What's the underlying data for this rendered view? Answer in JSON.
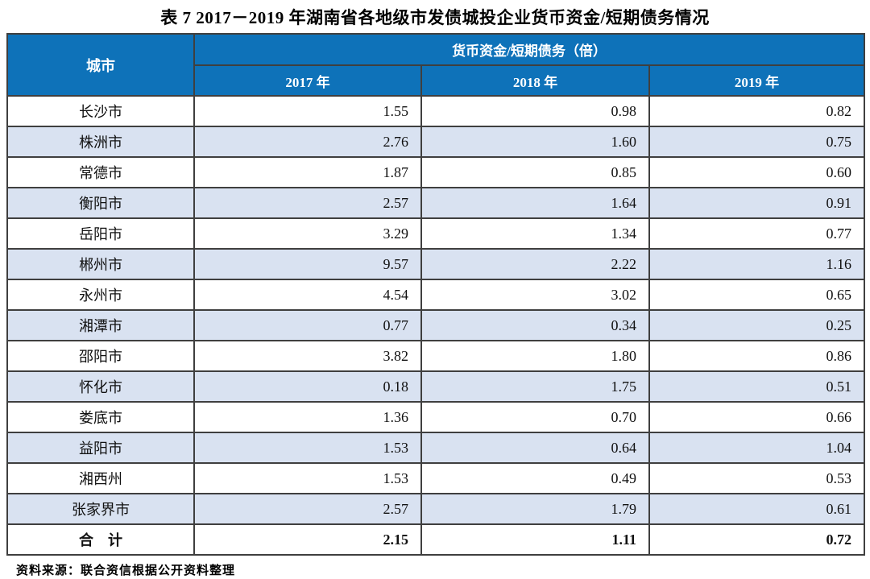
{
  "title": "表 7  2017－2019 年湖南省各地级市发债城投企业货币资金/短期债务情况",
  "table": {
    "col_city": "城市",
    "col_group": "货币资金/短期债务（倍）",
    "col_years": [
      "2017 年",
      "2018 年",
      "2019 年"
    ],
    "unit": "倍",
    "rows": [
      {
        "city": "长沙市",
        "v2017": "1.55",
        "v2018": "0.98",
        "v2019": "0.82"
      },
      {
        "city": "株洲市",
        "v2017": "2.76",
        "v2018": "1.60",
        "v2019": "0.75"
      },
      {
        "city": "常德市",
        "v2017": "1.87",
        "v2018": "0.85",
        "v2019": "0.60"
      },
      {
        "city": "衡阳市",
        "v2017": "2.57",
        "v2018": "1.64",
        "v2019": "0.91"
      },
      {
        "city": "岳阳市",
        "v2017": "3.29",
        "v2018": "1.34",
        "v2019": "0.77"
      },
      {
        "city": "郴州市",
        "v2017": "9.57",
        "v2018": "2.22",
        "v2019": "1.16"
      },
      {
        "city": "永州市",
        "v2017": "4.54",
        "v2018": "3.02",
        "v2019": "0.65"
      },
      {
        "city": "湘潭市",
        "v2017": "0.77",
        "v2018": "0.34",
        "v2019": "0.25"
      },
      {
        "city": "邵阳市",
        "v2017": "3.82",
        "v2018": "1.80",
        "v2019": "0.86"
      },
      {
        "city": "怀化市",
        "v2017": "0.18",
        "v2018": "1.75",
        "v2019": "0.51"
      },
      {
        "city": "娄底市",
        "v2017": "1.36",
        "v2018": "0.70",
        "v2019": "0.66"
      },
      {
        "city": "益阳市",
        "v2017": "1.53",
        "v2018": "0.64",
        "v2019": "1.04"
      },
      {
        "city": "湘西州",
        "v2017": "1.53",
        "v2018": "0.49",
        "v2019": "0.53"
      },
      {
        "city": "张家界市",
        "v2017": "2.57",
        "v2018": "1.79",
        "v2019": "0.61"
      }
    ],
    "total": {
      "label": "合　计",
      "v2017": "2.15",
      "v2018": "1.11",
      "v2019": "0.72"
    }
  },
  "source_note": "资料来源：联合资信根据公开资料整理",
  "colors": {
    "header_bg": "#0E72B9",
    "alt_row_bg": "#D9E2F1",
    "border": "#3F3F3F",
    "header_text": "#FFFFFF"
  }
}
